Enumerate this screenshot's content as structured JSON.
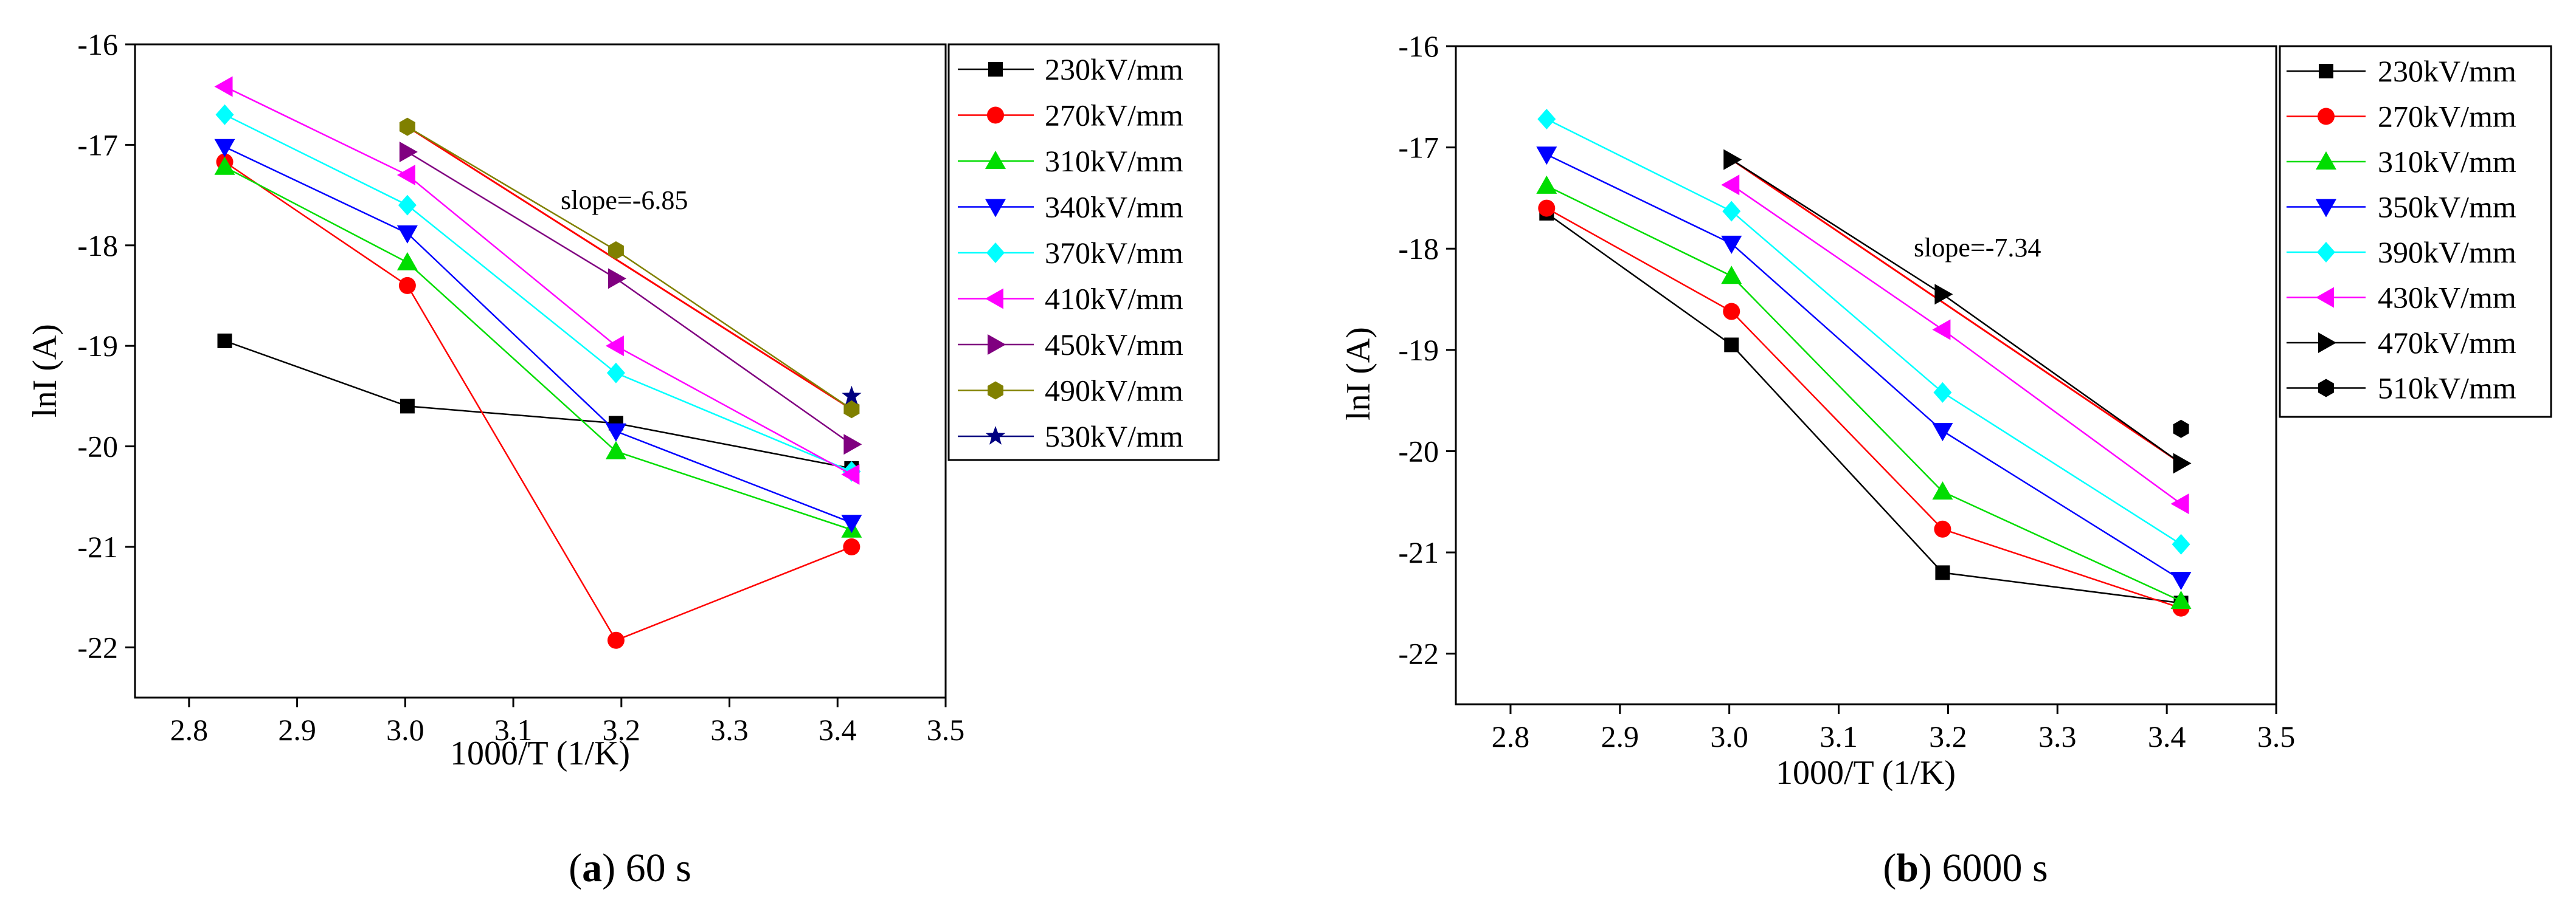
{
  "chart_data": [
    {
      "type": "line",
      "panel_label": "a",
      "caption": "60 s",
      "xlabel": "1000/T (1/K)",
      "ylabel": "lnI (A)",
      "xlim": [
        2.75,
        3.5
      ],
      "ylim": [
        -22.5,
        -16
      ],
      "xticks": [
        "2.8",
        "2.9",
        "3.0",
        "3.1",
        "3.2",
        "3.3",
        "3.4",
        "3.5"
      ],
      "yticks": [
        "-16",
        "-17",
        "-18",
        "-19",
        "-20",
        "-21",
        "-22"
      ],
      "x": [
        2.833,
        3.002,
        3.195,
        3.413
      ],
      "annotation": "slope=-6.85",
      "legend_position": "right",
      "series": [
        {
          "name": "230kV/mm",
          "color": "#000000",
          "marker": "square",
          "points": [
            [
              2.833,
              -18.95
            ],
            [
              3.002,
              -19.6
            ],
            [
              3.195,
              -19.77
            ],
            [
              3.413,
              -20.22
            ]
          ]
        },
        {
          "name": "270kV/mm",
          "color": "#ff0000",
          "marker": "circle",
          "points": [
            [
              2.833,
              -17.17
            ],
            [
              3.002,
              -18.4
            ],
            [
              3.195,
              -21.93
            ],
            [
              3.413,
              -21.0
            ]
          ]
        },
        {
          "name": "310kV/mm",
          "color": "#00dd00",
          "marker": "triangle-up",
          "points": [
            [
              2.833,
              -17.22
            ],
            [
              3.002,
              -18.17
            ],
            [
              3.195,
              -20.05
            ],
            [
              3.413,
              -20.83
            ]
          ]
        },
        {
          "name": "340kV/mm",
          "color": "#0000ff",
          "marker": "triangle-down",
          "points": [
            [
              2.833,
              -17.02
            ],
            [
              3.002,
              -17.88
            ],
            [
              3.195,
              -19.85
            ],
            [
              3.413,
              -20.76
            ]
          ]
        },
        {
          "name": "370kV/mm",
          "color": "#00ffff",
          "marker": "diamond",
          "points": [
            [
              2.833,
              -16.7
            ],
            [
              3.002,
              -17.6
            ],
            [
              3.195,
              -19.27
            ],
            [
              3.413,
              -20.25
            ]
          ]
        },
        {
          "name": "410kV/mm",
          "color": "#ff00ff",
          "marker": "triangle-left",
          "points": [
            [
              2.833,
              -16.42
            ],
            [
              3.002,
              -17.3
            ],
            [
              3.195,
              -19.0
            ],
            [
              3.413,
              -20.28
            ]
          ]
        },
        {
          "name": "450kV/mm",
          "color": "#800080",
          "marker": "triangle-right",
          "points": [
            [
              3.002,
              -17.07
            ],
            [
              3.195,
              -18.33
            ],
            [
              3.413,
              -19.98
            ]
          ]
        },
        {
          "name": "490kV/mm",
          "color": "#808000",
          "marker": "hexagon",
          "points": [
            [
              3.002,
              -16.82
            ],
            [
              3.195,
              -18.05
            ],
            [
              3.413,
              -19.63
            ]
          ]
        },
        {
          "name": "530kV/mm",
          "color": "#000080",
          "marker": "star",
          "points": [
            [
              3.413,
              -19.5
            ]
          ]
        }
      ],
      "fit_line": {
        "color": "#ff0000",
        "points": [
          [
            3.002,
            -16.82
          ],
          [
            3.413,
            -19.63
          ]
        ]
      }
    },
    {
      "type": "line",
      "panel_label": "b",
      "caption": "6000 s",
      "xlabel": "1000/T (1/K)",
      "ylabel": "lnI (A)",
      "xlim": [
        2.75,
        3.5
      ],
      "ylim": [
        -22.5,
        -16
      ],
      "xticks": [
        "2.8",
        "2.9",
        "3.0",
        "3.1",
        "3.2",
        "3.3",
        "3.4",
        "3.5"
      ],
      "yticks": [
        "-16",
        "-17",
        "-18",
        "-19",
        "-20",
        "-21",
        "-22"
      ],
      "x": [
        2.833,
        3.002,
        3.195,
        3.413
      ],
      "annotation": "slope=-7.34",
      "legend_position": "right",
      "series": [
        {
          "name": "230kV/mm",
          "color": "#000000",
          "marker": "square",
          "points": [
            [
              2.833,
              -17.65
            ],
            [
              3.002,
              -18.95
            ],
            [
              3.195,
              -21.2
            ],
            [
              3.413,
              -21.5
            ]
          ]
        },
        {
          "name": "270kV/mm",
          "color": "#ff0000",
          "marker": "circle",
          "points": [
            [
              2.833,
              -17.6
            ],
            [
              3.002,
              -18.62
            ],
            [
              3.195,
              -20.77
            ],
            [
              3.413,
              -21.55
            ]
          ]
        },
        {
          "name": "310kV/mm",
          "color": "#00dd00",
          "marker": "triangle-up",
          "points": [
            [
              2.833,
              -17.38
            ],
            [
              3.002,
              -18.27
            ],
            [
              3.195,
              -20.4
            ],
            [
              3.413,
              -21.48
            ]
          ]
        },
        {
          "name": "350kV/mm",
          "color": "#0000ff",
          "marker": "triangle-down",
          "points": [
            [
              2.833,
              -17.07
            ],
            [
              3.002,
              -17.95
            ],
            [
              3.195,
              -19.8
            ],
            [
              3.413,
              -21.27
            ]
          ]
        },
        {
          "name": "390kV/mm",
          "color": "#00ffff",
          "marker": "diamond",
          "points": [
            [
              2.833,
              -16.72
            ],
            [
              3.002,
              -17.63
            ],
            [
              3.195,
              -19.42
            ],
            [
              3.413,
              -20.92
            ]
          ]
        },
        {
          "name": "430kV/mm",
          "color": "#ff00ff",
          "marker": "triangle-left",
          "points": [
            [
              3.002,
              -17.37
            ],
            [
              3.195,
              -18.8
            ],
            [
              3.413,
              -20.52
            ]
          ]
        },
        {
          "name": "470kV/mm",
          "color": "#000000",
          "marker": "triangle-right",
          "points": [
            [
              3.002,
              -17.12
            ],
            [
              3.195,
              -18.45
            ],
            [
              3.413,
              -20.12
            ]
          ]
        },
        {
          "name": "510kV/mm",
          "color": "#000000",
          "marker": "hexagon",
          "points": [
            [
              3.413,
              -19.78
            ]
          ]
        }
      ],
      "fit_line": {
        "color": "#ff0000",
        "points": [
          [
            3.002,
            -17.12
          ],
          [
            3.413,
            -20.12
          ]
        ]
      }
    }
  ]
}
